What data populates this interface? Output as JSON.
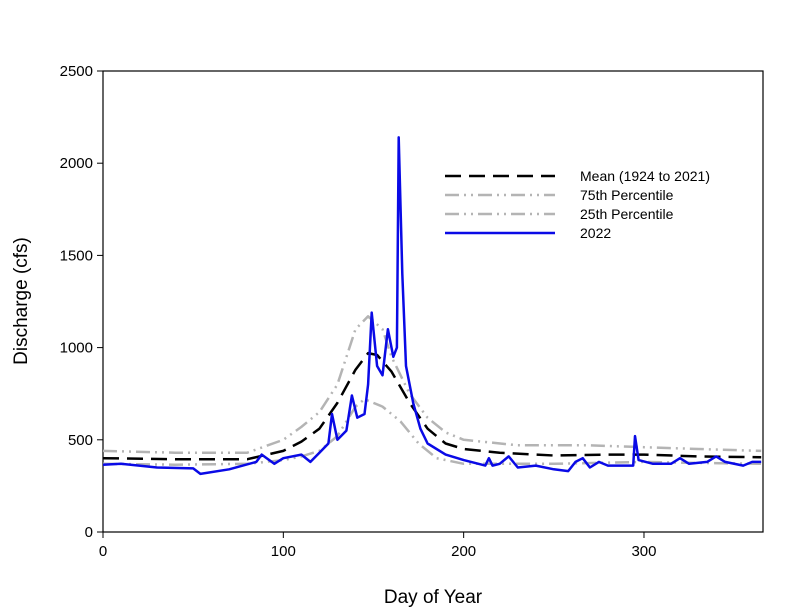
{
  "chart_data": {
    "type": "line",
    "title": "",
    "xlabel": "Day of Year",
    "ylabel": "Discharge (cfs)",
    "xlim": [
      0,
      366
    ],
    "ylim": [
      0,
      2500
    ],
    "xticks": [
      0,
      100,
      200,
      300
    ],
    "yticks": [
      0,
      500,
      1000,
      1500,
      2000,
      2500
    ],
    "grid": false,
    "legend_position": "upper-right",
    "series": [
      {
        "name": "Mean (1924 to 2021)",
        "color": "#000000",
        "style": "dash",
        "x": [
          0,
          40,
          80,
          100,
          110,
          120,
          130,
          140,
          147,
          152,
          160,
          170,
          180,
          190,
          200,
          220,
          250,
          280,
          300,
          330,
          365
        ],
        "y": [
          400,
          395,
          395,
          440,
          490,
          560,
          700,
          880,
          970,
          960,
          870,
          700,
          560,
          480,
          450,
          430,
          415,
          420,
          420,
          410,
          405
        ]
      },
      {
        "name": "75th Percentile",
        "color": "#b4b4b4",
        "style": "dashdotdot",
        "x": [
          0,
          40,
          80,
          100,
          110,
          120,
          130,
          140,
          147,
          155,
          160,
          170,
          180,
          190,
          200,
          230,
          270,
          300,
          330,
          365
        ],
        "y": [
          440,
          430,
          430,
          500,
          570,
          650,
          800,
          1100,
          1170,
          1100,
          950,
          750,
          620,
          540,
          500,
          470,
          470,
          460,
          450,
          440
        ]
      },
      {
        "name": "25th Percentile",
        "color": "#b4b4b4",
        "style": "dashdotdot",
        "x": [
          0,
          40,
          80,
          100,
          110,
          120,
          130,
          140,
          145,
          155,
          165,
          175,
          185,
          200,
          250,
          300,
          330,
          365
        ],
        "y": [
          370,
          365,
          370,
          390,
          410,
          440,
          520,
          680,
          720,
          680,
          600,
          480,
          400,
          370,
          370,
          380,
          375,
          370
        ]
      },
      {
        "name": "2022",
        "color": "#0a0ae6",
        "style": "solid",
        "x": [
          0,
          10,
          30,
          50,
          54,
          70,
          85,
          88,
          95,
          100,
          110,
          115,
          120,
          125,
          127,
          130,
          135,
          138,
          141,
          145,
          147,
          149,
          152,
          155,
          158,
          161,
          163,
          164,
          166,
          168,
          172,
          176,
          180,
          190,
          200,
          212,
          214,
          216,
          220,
          225,
          230,
          240,
          250,
          258,
          262,
          266,
          270,
          275,
          280,
          294,
          295,
          297,
          305,
          315,
          320,
          325,
          335,
          340,
          345,
          355,
          360,
          365
        ],
        "y": [
          365,
          370,
          350,
          345,
          315,
          340,
          380,
          420,
          370,
          400,
          420,
          380,
          430,
          480,
          640,
          500,
          550,
          740,
          620,
          640,
          800,
          1190,
          900,
          850,
          1100,
          950,
          1000,
          2140,
          1400,
          900,
          700,
          560,
          480,
          420,
          390,
          360,
          400,
          360,
          370,
          410,
          350,
          360,
          340,
          330,
          380,
          400,
          350,
          380,
          360,
          360,
          520,
          390,
          370,
          370,
          400,
          370,
          380,
          410,
          380,
          360,
          380,
          380
        ]
      }
    ]
  }
}
